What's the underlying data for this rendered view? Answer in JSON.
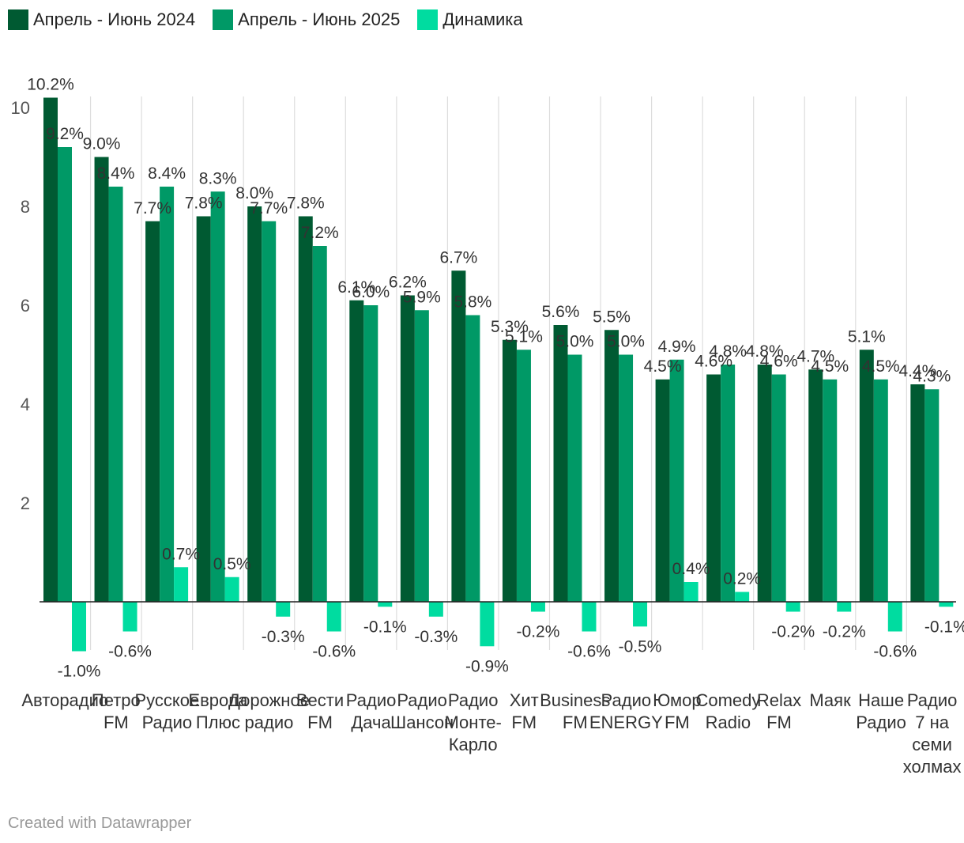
{
  "legend": [
    {
      "label": "Апрель - Июнь 2024",
      "color": "#005a32"
    },
    {
      "label": "Апрель - Июнь 2025",
      "color": "#009966"
    },
    {
      "label": "Динамика",
      "color": "#00dca0"
    }
  ],
  "footer": "Created with Datawrapper",
  "chart_data": {
    "type": "bar",
    "title": "",
    "xlabel": "",
    "ylabel": "",
    "ylim": [
      -1.6,
      10.2
    ],
    "yticks": [
      2,
      4,
      6,
      8,
      10
    ],
    "grid": true,
    "categories": [
      [
        "Авторадио"
      ],
      [
        "Петро",
        "FM"
      ],
      [
        "Русское",
        "Радио"
      ],
      [
        "Европа",
        "Плюс"
      ],
      [
        "Дорожное",
        "радио"
      ],
      [
        "Вести",
        "FM"
      ],
      [
        "Радио",
        "Дача"
      ],
      [
        "Радио",
        "Шансон"
      ],
      [
        "Радио",
        "Монте-",
        "Карло"
      ],
      [
        "Хит",
        "FM"
      ],
      [
        "Business",
        "FM"
      ],
      [
        "Радио",
        "ENERGY"
      ],
      [
        "Юмор",
        "FM"
      ],
      [
        "Comedy",
        "Radio"
      ],
      [
        "Relax",
        "FM"
      ],
      [
        "Маяк"
      ],
      [
        "Наше",
        "Радио"
      ],
      [
        "Радио",
        "7 на",
        "семи",
        "холмах"
      ]
    ],
    "series": [
      {
        "name": "Апрель - Июнь 2024",
        "color": "#005a32",
        "values": [
          10.2,
          9.0,
          7.7,
          7.8,
          8.0,
          7.8,
          6.1,
          6.2,
          6.7,
          5.3,
          5.6,
          5.5,
          4.5,
          4.6,
          4.8,
          4.7,
          5.1,
          4.4
        ],
        "labels": [
          "10.2%",
          "9.0%",
          "7.7%",
          "7.8%",
          "8.0%",
          "7.8%",
          "6.1%",
          "6.2%",
          "6.7%",
          "5.3%",
          "5.6%",
          "5.5%",
          "4.5%",
          "4.6%",
          "4.8%",
          "4.7%",
          "5.1%",
          "4.4%"
        ]
      },
      {
        "name": "Апрель - Июнь 2025",
        "color": "#009966",
        "values": [
          9.2,
          8.4,
          8.4,
          8.3,
          7.7,
          7.2,
          6.0,
          5.9,
          5.8,
          5.1,
          5.0,
          5.0,
          4.9,
          4.8,
          4.6,
          4.5,
          4.5,
          4.3
        ],
        "labels": [
          "9.2%",
          "8.4%",
          "8.4%",
          "8.3%",
          "7.7%",
          "7.2%",
          "6.0%",
          "5.9%",
          "5.8%",
          "5.1%",
          "5.0%",
          "5.0%",
          "4.9%",
          "4.8%",
          "4.6%",
          "4.5%",
          "4.5%",
          "4.3%"
        ]
      },
      {
        "name": "Динамика",
        "color": "#00dca0",
        "values": [
          -1.0,
          -0.6,
          0.7,
          0.5,
          -0.3,
          -0.6,
          -0.1,
          -0.3,
          -0.9,
          -0.2,
          -0.6,
          -0.5,
          0.4,
          0.2,
          -0.2,
          -0.2,
          -0.6,
          -0.1
        ],
        "labels": [
          "-1.0%",
          "-0.6%",
          "0.7%",
          "0.5%",
          "-0.3%",
          "-0.6%",
          "-0.1%",
          "-0.3%",
          "-0.9%",
          "-0.2%",
          "-0.6%",
          "-0.5%",
          "0.4%",
          "0.2%",
          "-0.2%",
          "-0.2%",
          "-0.6%",
          "-0.1%"
        ]
      }
    ]
  }
}
